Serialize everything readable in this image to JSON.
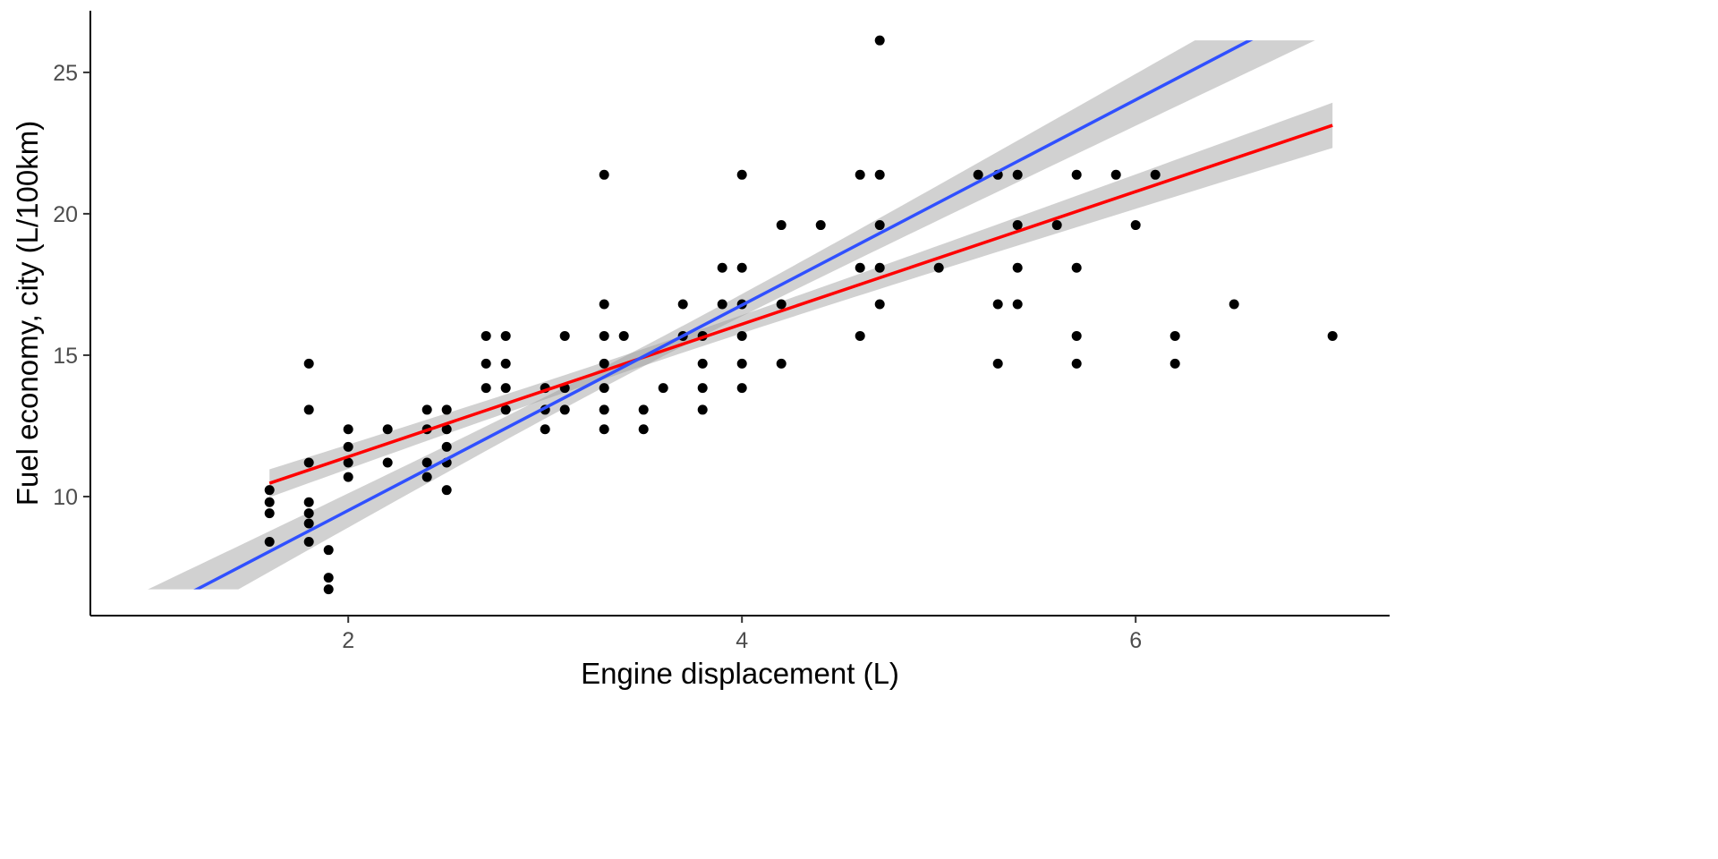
{
  "chart_data": {
    "type": "scatter",
    "title": "",
    "xlabel": "Engine displacement (L)",
    "ylabel": "Fuel economy, city (L/100km)",
    "xlim": [
      0.69,
      7.29
    ],
    "ylim": [
      5.79,
      27.18
    ],
    "xticks": [
      2,
      4,
      6
    ],
    "yticks": [
      10,
      15,
      20,
      25
    ],
    "grid": false,
    "legend": "none",
    "point_color": "#000000",
    "points": [
      [
        1.6,
        10.23
      ],
      [
        1.6,
        9.8
      ],
      [
        1.6,
        9.41
      ],
      [
        1.6,
        8.4
      ],
      [
        1.8,
        14.7
      ],
      [
        1.8,
        13.07
      ],
      [
        1.8,
        11.2
      ],
      [
        1.8,
        9.8
      ],
      [
        1.8,
        9.41
      ],
      [
        1.8,
        9.05
      ],
      [
        1.8,
        8.4
      ],
      [
        1.9,
        8.11
      ],
      [
        1.9,
        7.13
      ],
      [
        1.9,
        6.72
      ],
      [
        2.0,
        12.38
      ],
      [
        2.0,
        11.76
      ],
      [
        2.0,
        11.2
      ],
      [
        2.0,
        10.69
      ],
      [
        2.2,
        12.38
      ],
      [
        2.2,
        11.2
      ],
      [
        2.4,
        13.07
      ],
      [
        2.4,
        12.38
      ],
      [
        2.4,
        11.2
      ],
      [
        2.4,
        10.69
      ],
      [
        2.5,
        13.07
      ],
      [
        2.5,
        12.38
      ],
      [
        2.5,
        11.76
      ],
      [
        2.5,
        11.2
      ],
      [
        2.5,
        10.23
      ],
      [
        2.7,
        15.68
      ],
      [
        2.7,
        14.7
      ],
      [
        2.7,
        13.84
      ],
      [
        2.8,
        15.68
      ],
      [
        2.8,
        14.7
      ],
      [
        2.8,
        13.84
      ],
      [
        2.8,
        13.07
      ],
      [
        3.0,
        13.84
      ],
      [
        3.0,
        13.07
      ],
      [
        3.0,
        12.38
      ],
      [
        3.1,
        15.68
      ],
      [
        3.1,
        13.84
      ],
      [
        3.1,
        13.07
      ],
      [
        3.3,
        21.38
      ],
      [
        3.3,
        16.8
      ],
      [
        3.3,
        15.68
      ],
      [
        3.3,
        14.7
      ],
      [
        3.3,
        13.84
      ],
      [
        3.3,
        13.07
      ],
      [
        3.3,
        12.38
      ],
      [
        3.4,
        15.68
      ],
      [
        3.5,
        13.07
      ],
      [
        3.5,
        12.38
      ],
      [
        3.6,
        13.84
      ],
      [
        3.7,
        16.8
      ],
      [
        3.7,
        15.68
      ],
      [
        3.8,
        15.68
      ],
      [
        3.8,
        14.7
      ],
      [
        3.8,
        13.84
      ],
      [
        3.8,
        13.07
      ],
      [
        3.9,
        18.09
      ],
      [
        3.9,
        16.8
      ],
      [
        4.0,
        21.38
      ],
      [
        4.0,
        18.09
      ],
      [
        4.0,
        16.8
      ],
      [
        4.0,
        15.68
      ],
      [
        4.0,
        14.7
      ],
      [
        4.0,
        13.84
      ],
      [
        4.2,
        19.6
      ],
      [
        4.2,
        16.8
      ],
      [
        4.2,
        14.7
      ],
      [
        4.4,
        19.6
      ],
      [
        4.6,
        21.38
      ],
      [
        4.6,
        18.09
      ],
      [
        4.6,
        15.68
      ],
      [
        4.7,
        26.13
      ],
      [
        4.7,
        21.38
      ],
      [
        4.7,
        19.6
      ],
      [
        4.7,
        18.09
      ],
      [
        4.7,
        16.8
      ],
      [
        5.0,
        18.09
      ],
      [
        5.2,
        21.38
      ],
      [
        5.3,
        21.38
      ],
      [
        5.3,
        16.8
      ],
      [
        5.3,
        14.7
      ],
      [
        5.4,
        21.38
      ],
      [
        5.4,
        19.6
      ],
      [
        5.4,
        18.09
      ],
      [
        5.4,
        16.8
      ],
      [
        5.6,
        19.6
      ],
      [
        5.7,
        21.38
      ],
      [
        5.7,
        18.09
      ],
      [
        5.7,
        15.68
      ],
      [
        5.7,
        14.7
      ],
      [
        5.9,
        21.38
      ],
      [
        6.0,
        19.6
      ],
      [
        6.1,
        21.38
      ],
      [
        6.2,
        15.68
      ],
      [
        6.2,
        14.7
      ],
      [
        6.5,
        16.8
      ],
      [
        7.0,
        15.68
      ]
    ],
    "fits": [
      {
        "name": "fit-blue",
        "color": "#3050ff",
        "slope": 3.63,
        "intercept": 2.25,
        "x_range": [
          0.95,
          7.0
        ],
        "y_clip": [
          6.72,
          26.13
        ],
        "se_center_x": 3.47,
        "se_center": 0.35,
        "se_slope": 0.335
      },
      {
        "name": "fit-red",
        "color": "#ff0000",
        "slope": 2.344,
        "intercept": 6.72,
        "x_range": [
          1.6,
          7.0
        ],
        "y_clip": [
          6.72,
          26.13
        ],
        "se_center_x": 3.47,
        "se_center": 0.3,
        "se_slope": 0.21
      }
    ],
    "ribbon_color": "#999999"
  }
}
